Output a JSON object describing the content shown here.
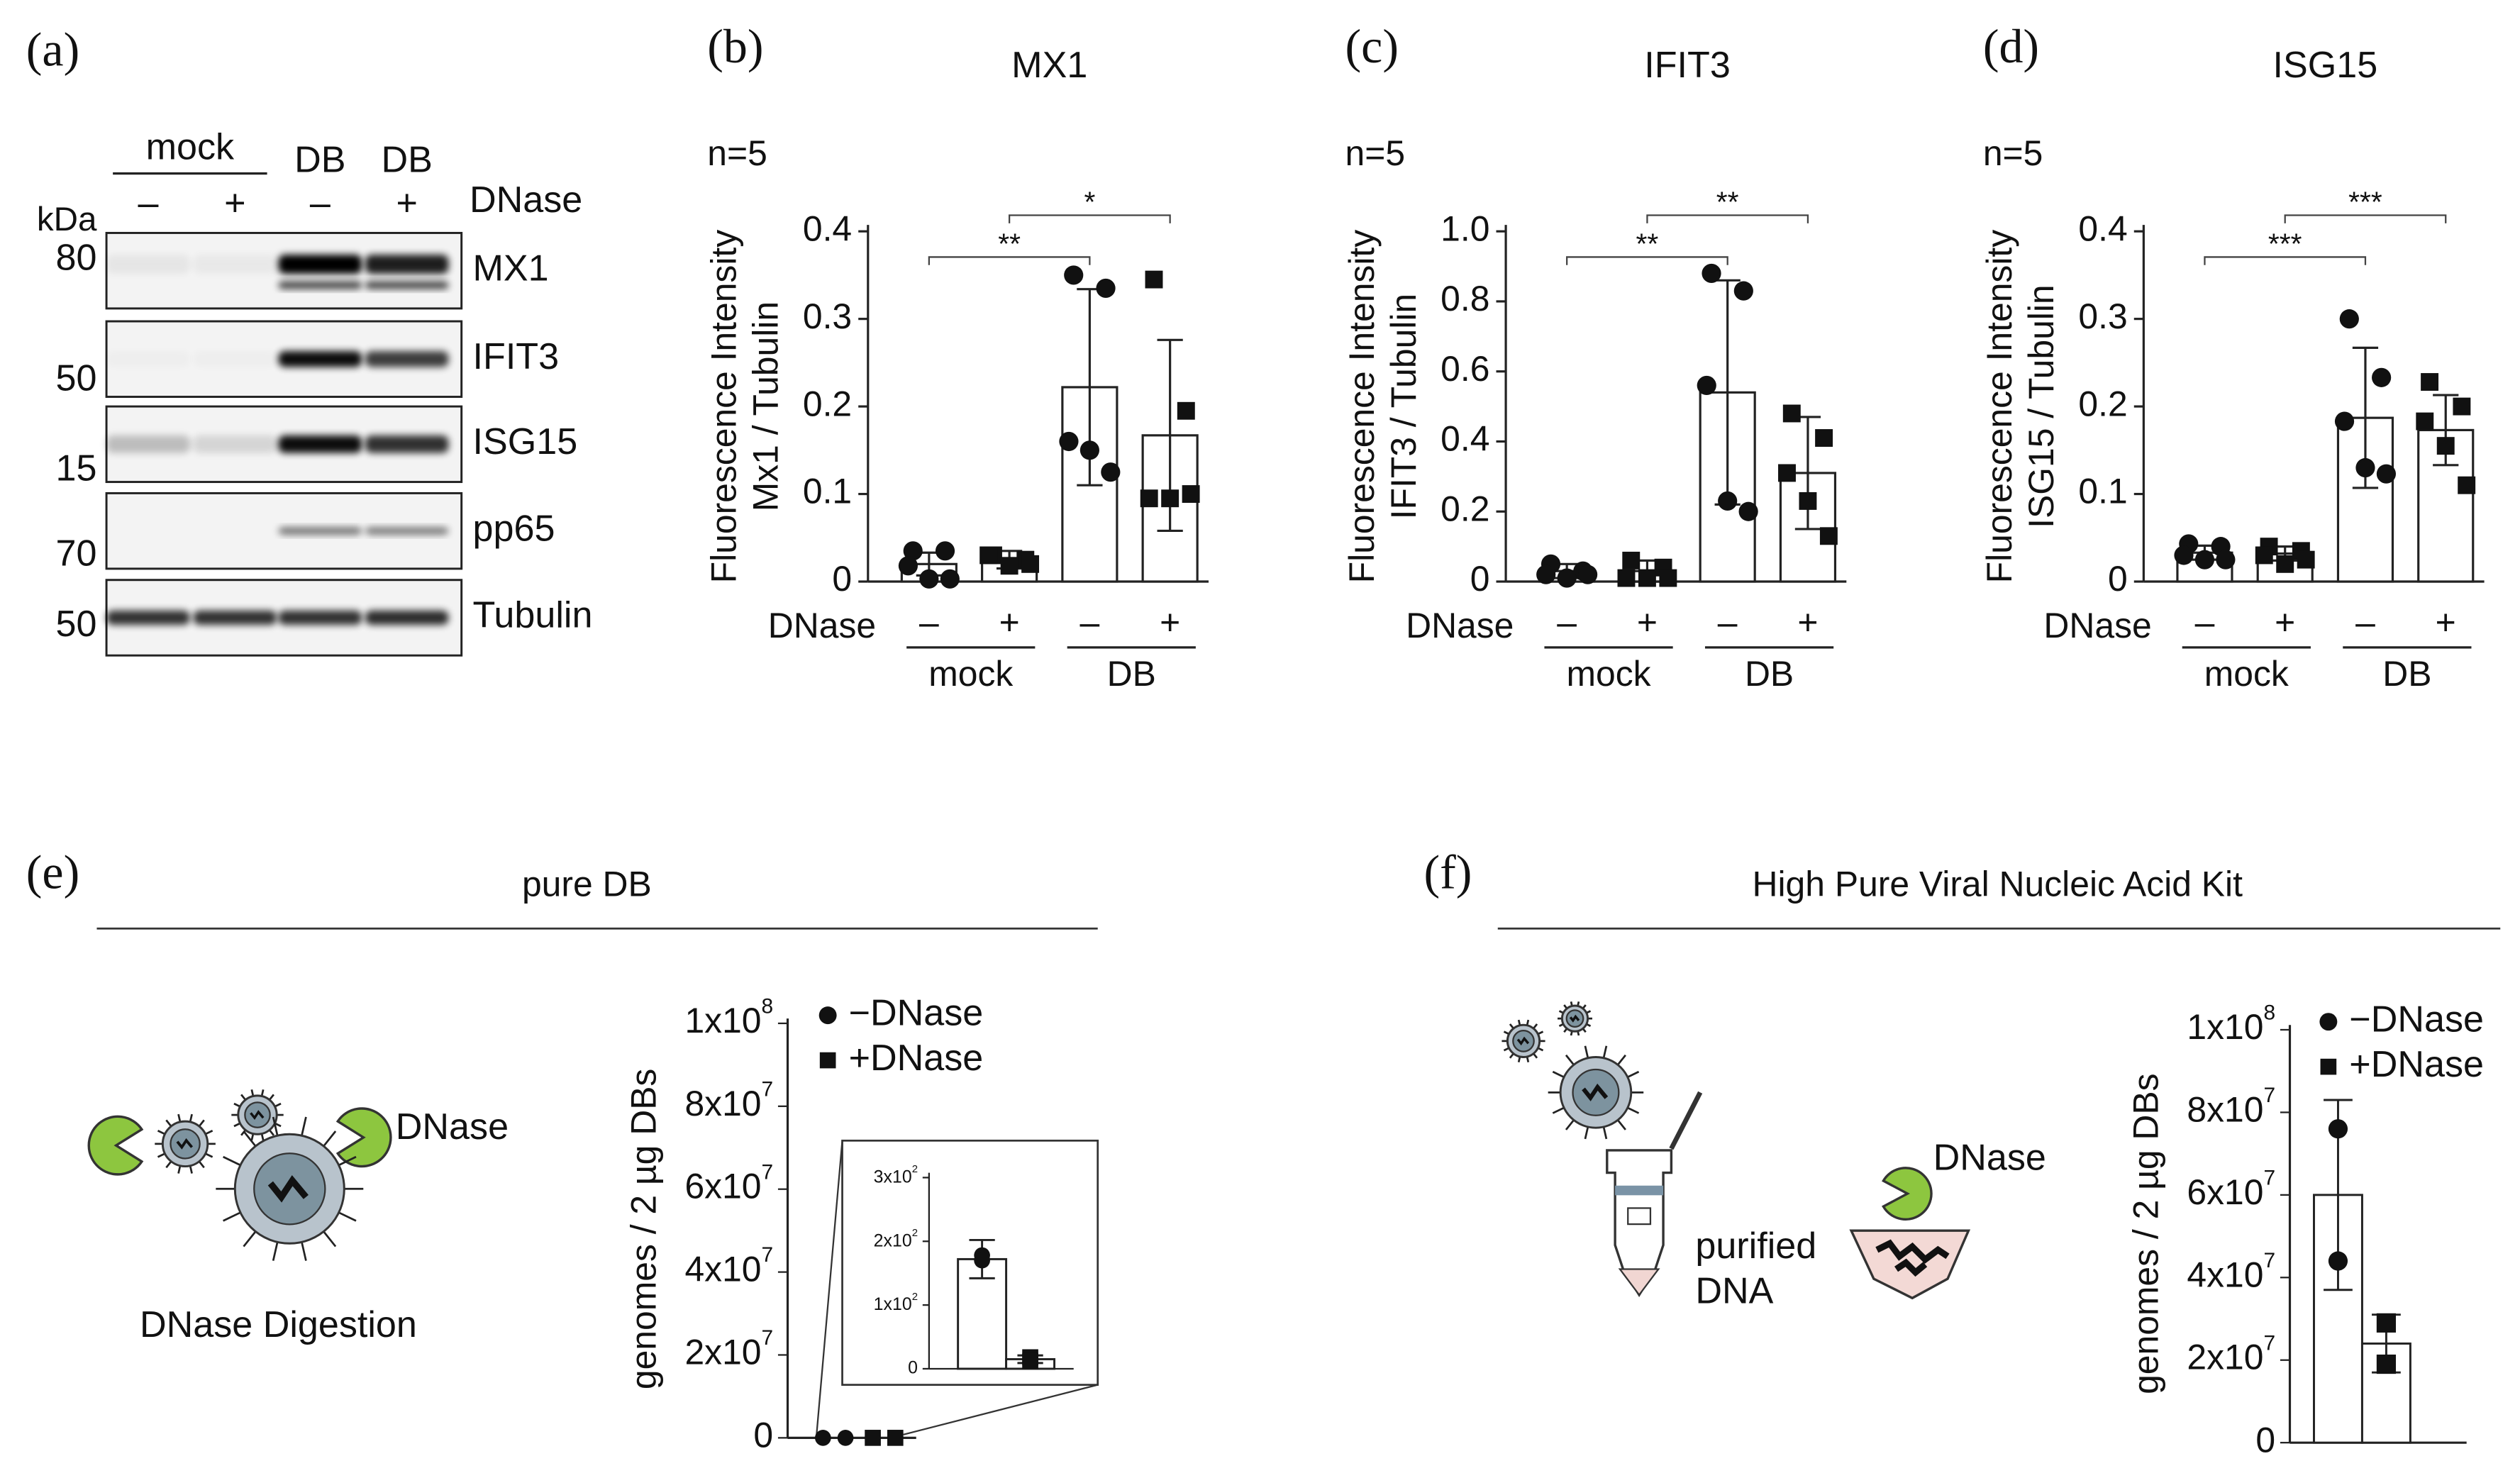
{
  "panel_a": {
    "panel_label": "(a)",
    "lane_header": [
      "mock",
      "DB",
      "DB"
    ],
    "treatment": "DNase",
    "signs": [
      "–",
      "+",
      "–",
      "+"
    ],
    "kda": "kDa",
    "markers": [
      80,
      50,
      15,
      70,
      50
    ],
    "bands": [
      "MX1",
      "IFIT3",
      "ISG15",
      "pp65",
      "Tubulin"
    ]
  },
  "chart_data": [
    {
      "type": "bar",
      "panel_label": "(b)",
      "title": "MX1",
      "n": "n=5",
      "ylabel": [
        "Fluorescence Intensity",
        "Mx1 / Tubulin"
      ],
      "xlabel": "DNase",
      "categories": [
        "–",
        "+",
        "–",
        "+"
      ],
      "groups": [
        "mock",
        "DB"
      ],
      "markers": [
        "circle",
        "square",
        "circle",
        "square"
      ],
      "values": [
        0.02,
        0.025,
        0.222,
        0.167
      ],
      "errors": [
        0.013,
        0.01,
        0.112,
        0.109
      ],
      "points": [
        [
          0.035,
          0.035,
          0.018,
          0.003,
          0.003
        ],
        [
          0.03,
          0.025,
          0.03,
          0.018,
          0.02
        ],
        [
          0.35,
          0.335,
          0.16,
          0.15,
          0.125
        ],
        [
          0.345,
          0.195,
          0.095,
          0.095,
          0.1
        ]
      ],
      "significance": [
        "**",
        "*"
      ],
      "ylim": [
        0,
        0.4
      ],
      "yticks": [
        0,
        0.1,
        0.2,
        0.3,
        0.4
      ]
    },
    {
      "type": "bar",
      "panel_label": "(c)",
      "title": "IFIT3",
      "n": "n=5",
      "ylabel": [
        "Fluorescence Intensity",
        "IFIT3 / Tubulin"
      ],
      "xlabel": "DNase",
      "categories": [
        "–",
        "+",
        "–",
        "+"
      ],
      "groups": [
        "mock",
        "DB"
      ],
      "markers": [
        "circle",
        "square",
        "circle",
        "square"
      ],
      "values": [
        0.03,
        0.03,
        0.54,
        0.31
      ],
      "errors": [
        0.02,
        0.03,
        0.32,
        0.16
      ],
      "points": [
        [
          0.05,
          0.03,
          0.02,
          0.01,
          0.02
        ],
        [
          0.06,
          0.04,
          0.01,
          0.01,
          0.01
        ],
        [
          0.88,
          0.83,
          0.56,
          0.23,
          0.2
        ],
        [
          0.48,
          0.41,
          0.31,
          0.23,
          0.13
        ]
      ],
      "significance": [
        "**",
        "**"
      ],
      "ylim": [
        0,
        1.0
      ],
      "yticks": [
        0,
        0.2,
        0.4,
        0.6,
        0.8,
        {
          "value": 1.0,
          "label": "1.0"
        }
      ]
    },
    {
      "type": "bar",
      "panel_label": "(d)",
      "title": "ISG15",
      "n": "n=5",
      "ylabel": [
        "Fluorescence Intensity",
        "ISG15 / Tubulin"
      ],
      "xlabel": "DNase",
      "categories": [
        "–",
        "+",
        "–",
        "+"
      ],
      "groups": [
        "mock",
        "DB"
      ],
      "markers": [
        "circle",
        "square",
        "circle",
        "square"
      ],
      "values": [
        0.033,
        0.032,
        0.187,
        0.173
      ],
      "errors": [
        0.008,
        0.008,
        0.08,
        0.04
      ],
      "points": [
        [
          0.043,
          0.04,
          0.03,
          0.025,
          0.025
        ],
        [
          0.04,
          0.035,
          0.03,
          0.02,
          0.025
        ],
        [
          0.3,
          0.233,
          0.183,
          0.13,
          0.123
        ],
        [
          0.228,
          0.2,
          0.183,
          0.155,
          0.11
        ]
      ],
      "significance": [
        "***",
        "***"
      ],
      "ylim": [
        0,
        0.4
      ],
      "yticks": [
        0,
        0.1,
        0.2,
        0.3,
        0.4
      ]
    },
    {
      "type": "bar",
      "panel_label": "(e)",
      "title": "pure DB",
      "diagram_labels": [
        "DNase",
        "DNase Digestion"
      ],
      "ylabel": "genomes / 2 µg DBs",
      "series": [
        {
          "name": "−DNase",
          "marker": "circle",
          "value": 172,
          "error": 30,
          "points": [
            178,
            170
          ]
        },
        {
          "name": "+DNase",
          "marker": "square",
          "value": 15,
          "error": 6,
          "points": [
            18,
            12
          ]
        }
      ],
      "ylim": [
        0,
        100000000
      ],
      "yticks": [
        0,
        {
          "value": 20000000,
          "label": "2x10",
          "sup": "7"
        },
        {
          "value": 40000000,
          "label": "4x10",
          "sup": "7"
        },
        {
          "value": 60000000,
          "label": "6x10",
          "sup": "7"
        },
        {
          "value": 80000000,
          "label": "8x10",
          "sup": "7"
        },
        {
          "value": 100000000,
          "label": "1x10",
          "sup": "8"
        }
      ],
      "inset": {
        "ylim": [
          0,
          300
        ],
        "yticks": [
          0,
          {
            "value": 100,
            "label": "1x10",
            "sup": "2"
          },
          {
            "value": 200,
            "label": "2x10",
            "sup": "2"
          },
          {
            "value": 300,
            "label": "3x10",
            "sup": "2"
          }
        ]
      }
    },
    {
      "type": "bar",
      "panel_label": "(f)",
      "title": "High Pure Viral Nucleic Acid Kit",
      "diagram_labels": [
        "purified",
        "DNA",
        "DNase"
      ],
      "ylabel": "genomes / 2 µg DBs",
      "series": [
        {
          "name": "−DNase",
          "marker": "circle",
          "value": 60000000,
          "error": 23000000,
          "points": [
            76000000,
            44000000
          ]
        },
        {
          "name": "+DNase",
          "marker": "square",
          "value": 24000000,
          "error": 7000000,
          "points": [
            29000000,
            19000000
          ]
        }
      ],
      "ylim": [
        0,
        100000000
      ],
      "yticks": [
        {
          "value": 0,
          "label": "0"
        },
        {
          "value": 20000000,
          "label": "2x10",
          "sup": "7"
        },
        {
          "value": 40000000,
          "label": "4x10",
          "sup": "7"
        },
        {
          "value": 60000000,
          "label": "6x10",
          "sup": "7"
        },
        {
          "value": 80000000,
          "label": "8x10",
          "sup": "7"
        },
        {
          "value": 100000000,
          "label": "1x10",
          "sup": "8"
        }
      ]
    }
  ]
}
